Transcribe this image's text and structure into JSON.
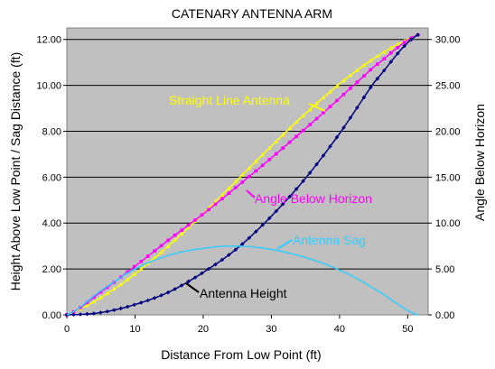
{
  "chart_data": {
    "type": "line",
    "title": "CATENARY ANTENNA ARM",
    "xlabel": "Distance From Low Point (ft)",
    "ylabel": "Height Above Low Point / Sag Distance (ft)",
    "y2label": "Angle Below Horizon",
    "xlim": [
      0,
      53
    ],
    "ylim": [
      0,
      12.5
    ],
    "y2lim": [
      0,
      31.25
    ],
    "x_ticks": [
      "0",
      "10",
      "20",
      "30",
      "40",
      "50"
    ],
    "y_ticks": [
      "0.00",
      "2.00",
      "4.00",
      "6.00",
      "8.00",
      "10.00",
      "12.00"
    ],
    "y2_ticks": [
      "0.00",
      "5.00",
      "10.00",
      "15.00",
      "20.00",
      "25.00",
      "30.00"
    ],
    "grid": "horizontal",
    "plot_background": "#c0c0c0",
    "series": [
      {
        "name": "Straight Line Antenna",
        "axis": "left",
        "color": "#ffff00",
        "marker": "triangle",
        "x": [
          0,
          51.5
        ],
        "y": [
          0,
          12.2
        ]
      },
      {
        "name": "Angle Below Horizon",
        "axis": "right",
        "color": "#ff00ff",
        "marker": "square",
        "x": [
          0,
          5,
          10,
          15,
          20,
          25,
          30,
          35,
          40,
          45,
          51.5
        ],
        "y": [
          0,
          2.5,
          5.3,
          8.2,
          11.0,
          14.0,
          17.1,
          20.3,
          23.6,
          27.0,
          30.5
        ]
      },
      {
        "name": "Antenna Height",
        "axis": "left",
        "color": "#000080",
        "marker": "diamond",
        "x": [
          0,
          5,
          10,
          15,
          20,
          25,
          30,
          35,
          40,
          45,
          51.5
        ],
        "y": [
          0,
          0.1,
          0.45,
          1.0,
          1.85,
          2.9,
          4.3,
          5.95,
          7.9,
          10.1,
          12.2
        ]
      },
      {
        "name": "Antenna Sag",
        "axis": "left",
        "color": "#33ccff",
        "marker": "none",
        "x": [
          0,
          5,
          10,
          15,
          20,
          25,
          30,
          35,
          40,
          45,
          51.5
        ],
        "y": [
          0,
          1.05,
          2.0,
          2.6,
          2.9,
          3.0,
          2.85,
          2.5,
          1.95,
          1.15,
          0
        ]
      }
    ]
  }
}
